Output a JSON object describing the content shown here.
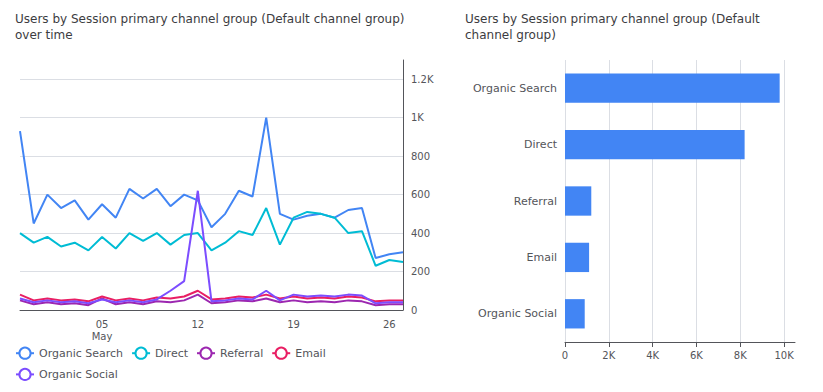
{
  "chart_data": [
    {
      "type": "line",
      "title": "Users by Session primary channel group (Default channel group)\nover time",
      "categories": [
        null,
        null,
        null,
        null,
        null,
        null,
        "05\nMay",
        null,
        null,
        null,
        null,
        null,
        null,
        "12",
        null,
        null,
        null,
        null,
        null,
        null,
        "19",
        null,
        null,
        null,
        null,
        null,
        null,
        "26",
        null
      ],
      "series": [
        {
          "name": "Organic Search",
          "color": "#4285f4",
          "values": [
            930,
            450,
            600,
            530,
            570,
            470,
            550,
            480,
            630,
            580,
            630,
            540,
            600,
            570,
            430,
            500,
            620,
            590,
            1000,
            500,
            470,
            490,
            500,
            480,
            520,
            530,
            270,
            290,
            300
          ]
        },
        {
          "name": "Direct",
          "color": "#00bcd4",
          "values": [
            400,
            350,
            380,
            330,
            350,
            310,
            380,
            320,
            400,
            360,
            400,
            340,
            390,
            400,
            310,
            350,
            410,
            390,
            530,
            340,
            480,
            510,
            500,
            480,
            400,
            410,
            230,
            260,
            250
          ]
        },
        {
          "name": "Referral",
          "color": "#9c27b0",
          "values": [
            50,
            30,
            40,
            30,
            35,
            25,
            60,
            30,
            40,
            30,
            45,
            40,
            50,
            80,
            35,
            40,
            50,
            45,
            60,
            40,
            50,
            40,
            45,
            40,
            50,
            45,
            25,
            30,
            30
          ]
        },
        {
          "name": "Email",
          "color": "#e91e63",
          "values": [
            80,
            50,
            60,
            50,
            55,
            45,
            70,
            50,
            60,
            50,
            65,
            60,
            70,
            100,
            55,
            60,
            70,
            65,
            80,
            60,
            70,
            60,
            65,
            60,
            70,
            65,
            45,
            50,
            50
          ]
        },
        {
          "name": "Organic Social",
          "color": "#7c4dff",
          "values": [
            60,
            40,
            50,
            40,
            45,
            35,
            55,
            40,
            50,
            40,
            55,
            100,
            150,
            620,
            45,
            50,
            60,
            55,
            100,
            50,
            80,
            70,
            75,
            70,
            80,
            75,
            35,
            40,
            40
          ]
        }
      ],
      "ylim": [
        0,
        1300
      ],
      "yticks": [
        0,
        200,
        400,
        600,
        800,
        {
          "value": 1000,
          "label": "1K"
        },
        {
          "value": 1200,
          "label": "1.2K"
        }
      ],
      "grid": true,
      "legend": "bottom"
    },
    {
      "type": "bar",
      "title": "Users by Session primary channel group (Default\nchannel group)",
      "orientation": "horizontal",
      "categories": [
        "Organic Search",
        "Direct",
        "Referral",
        "Email",
        "Organic Social"
      ],
      "values": [
        9800,
        8200,
        1200,
        1100,
        900
      ],
      "color": "#4285f4",
      "xlim": [
        0,
        10500
      ],
      "xticks": [
        0,
        {
          "value": 2000,
          "label": "2K"
        },
        {
          "value": 4000,
          "label": "4K"
        },
        {
          "value": 6000,
          "label": "6K"
        },
        {
          "value": 8000,
          "label": "8K"
        },
        {
          "value": 10000,
          "label": "10K"
        }
      ],
      "grid": true
    }
  ]
}
